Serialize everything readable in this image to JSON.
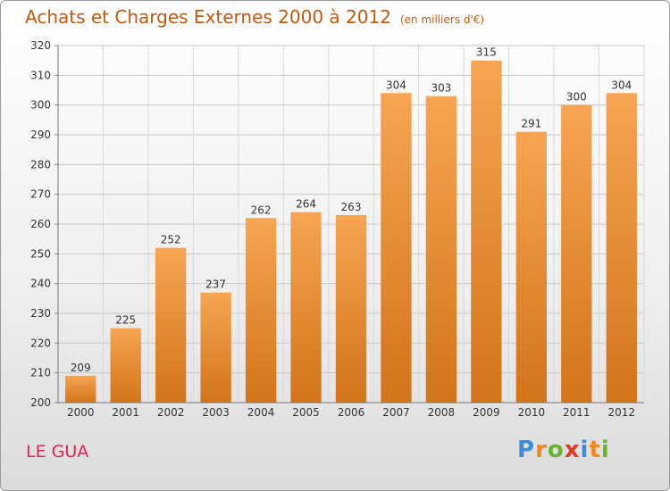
{
  "header": {
    "title": "Achats et Charges Externes 2000 à 2012",
    "subtitle": "(en milliers d'€)"
  },
  "footer": {
    "place": "LE GUA",
    "brand_letters": [
      "P",
      "r",
      "o",
      "x",
      "i",
      "t",
      "i"
    ]
  },
  "colors": {
    "bar_top": "#f6a552",
    "bar_bottom": "#d2741a",
    "title": "#c05a10",
    "place": "#e0245a",
    "brand": [
      "#3b8fd8",
      "#f28a1a",
      "#6ab42d",
      "#e23a2a",
      "#3b8fd8",
      "#f28a1a",
      "#6ab42d"
    ]
  },
  "chart_data": {
    "type": "bar",
    "title": "Achats et Charges Externes 2000 à 2012",
    "subtitle": "(en milliers d'€)",
    "categories": [
      "2000",
      "2001",
      "2002",
      "2003",
      "2004",
      "2005",
      "2006",
      "2007",
      "2008",
      "2009",
      "2010",
      "2011",
      "2012"
    ],
    "values": [
      209,
      225,
      252,
      237,
      262,
      264,
      263,
      304,
      303,
      315,
      291,
      300,
      304
    ],
    "ylim": [
      200,
      320
    ],
    "yticks": [
      200,
      210,
      220,
      230,
      240,
      250,
      260,
      270,
      280,
      290,
      300,
      310,
      320
    ],
    "grid": true,
    "legend": "none",
    "data_labels": true
  }
}
